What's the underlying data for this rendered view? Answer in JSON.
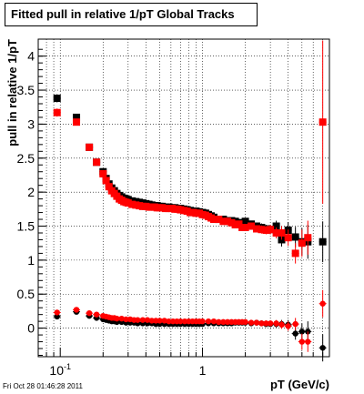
{
  "chart_data": {
    "type": "scatter",
    "title": "Fitted pull in relative 1/pT  Global Tracks",
    "xlabel": "pT (GeV/c)",
    "ylabel": "pull in relative 1/pT",
    "x_scale": "log",
    "xlim": [
      0.07,
      7.8
    ],
    "ylim": [
      -0.42,
      4.25
    ],
    "grid": true,
    "x_ticks": [
      {
        "value": 0.1,
        "label": "10",
        "sup": "-1"
      },
      {
        "value": 1,
        "label": "1",
        "sup": ""
      }
    ],
    "y_ticks": [
      0,
      0.5,
      1,
      1.5,
      2,
      2.5,
      3,
      3.5,
      4
    ],
    "y_tick_labels": [
      "0",
      "0.5",
      "1",
      "1.5",
      "2",
      "2.5",
      "3",
      "3.5",
      "4"
    ],
    "series": [
      {
        "color": "#000000",
        "marker": "square",
        "x": [
          0.095,
          0.13,
          0.16,
          0.18,
          0.2,
          0.21,
          0.22,
          0.23,
          0.24,
          0.25,
          0.26,
          0.27,
          0.28,
          0.29,
          0.3,
          0.32,
          0.34,
          0.36,
          0.38,
          0.4,
          0.42,
          0.44,
          0.46,
          0.48,
          0.5,
          0.52,
          0.55,
          0.58,
          0.61,
          0.64,
          0.67,
          0.7,
          0.74,
          0.78,
          0.82,
          0.86,
          0.9,
          0.95,
          1.0,
          1.05,
          1.1,
          1.15,
          1.2,
          1.3,
          1.4,
          1.5,
          1.6,
          1.7,
          1.8,
          1.9,
          2.0,
          2.2,
          2.4,
          2.6,
          2.8,
          3.0,
          3.3,
          3.6,
          4.0,
          4.5,
          5.0,
          5.5,
          7.0
        ],
        "y": [
          3.38,
          3.1,
          2.66,
          2.44,
          2.3,
          2.2,
          2.12,
          2.06,
          2.02,
          1.98,
          1.95,
          1.93,
          1.91,
          1.9,
          1.89,
          1.87,
          1.86,
          1.85,
          1.84,
          1.83,
          1.82,
          1.81,
          1.8,
          1.8,
          1.79,
          1.79,
          1.78,
          1.78,
          1.77,
          1.77,
          1.76,
          1.76,
          1.75,
          1.74,
          1.73,
          1.72,
          1.72,
          1.71,
          1.7,
          1.69,
          1.67,
          1.65,
          1.63,
          1.6,
          1.6,
          1.58,
          1.58,
          1.57,
          1.55,
          1.55,
          1.57,
          1.53,
          1.5,
          1.48,
          1.46,
          1.45,
          1.5,
          1.3,
          1.44,
          1.34,
          1.27,
          1.27,
          1.27
        ],
        "y_err": [
          0.06,
          0.05,
          0.04,
          0.03,
          0.02,
          0.02,
          0.02,
          0.02,
          0.02,
          0.02,
          0.02,
          0.02,
          0.02,
          0.02,
          0.02,
          0.02,
          0.02,
          0.02,
          0.02,
          0.02,
          0.02,
          0.02,
          0.02,
          0.02,
          0.02,
          0.02,
          0.02,
          0.02,
          0.02,
          0.02,
          0.02,
          0.02,
          0.02,
          0.02,
          0.02,
          0.02,
          0.02,
          0.02,
          0.02,
          0.02,
          0.02,
          0.02,
          0.02,
          0.03,
          0.03,
          0.03,
          0.03,
          0.03,
          0.03,
          0.04,
          0.04,
          0.05,
          0.05,
          0.06,
          0.06,
          0.07,
          0.08,
          0.1,
          0.12,
          0.15,
          0.2,
          0.25,
          0.3
        ]
      },
      {
        "color": "#ff0000",
        "marker": "square",
        "x": [
          0.095,
          0.13,
          0.16,
          0.18,
          0.2,
          0.21,
          0.22,
          0.23,
          0.24,
          0.25,
          0.26,
          0.27,
          0.28,
          0.29,
          0.3,
          0.32,
          0.34,
          0.36,
          0.38,
          0.4,
          0.42,
          0.44,
          0.46,
          0.48,
          0.5,
          0.52,
          0.55,
          0.58,
          0.61,
          0.64,
          0.67,
          0.7,
          0.74,
          0.78,
          0.82,
          0.86,
          0.9,
          0.95,
          1.0,
          1.05,
          1.1,
          1.15,
          1.2,
          1.3,
          1.4,
          1.5,
          1.6,
          1.7,
          1.8,
          1.9,
          2.0,
          2.2,
          2.4,
          2.6,
          2.8,
          3.0,
          3.3,
          3.6,
          4.0,
          4.5,
          5.0,
          5.5,
          7.0
        ],
        "y": [
          3.17,
          3.03,
          2.66,
          2.44,
          2.27,
          2.17,
          2.08,
          2.02,
          1.98,
          1.94,
          1.9,
          1.88,
          1.86,
          1.85,
          1.84,
          1.82,
          1.81,
          1.8,
          1.79,
          1.79,
          1.78,
          1.78,
          1.78,
          1.77,
          1.77,
          1.77,
          1.76,
          1.76,
          1.76,
          1.75,
          1.75,
          1.74,
          1.73,
          1.72,
          1.7,
          1.7,
          1.69,
          1.69,
          1.67,
          1.66,
          1.64,
          1.62,
          1.6,
          1.6,
          1.57,
          1.57,
          1.55,
          1.52,
          1.53,
          1.48,
          1.48,
          1.5,
          1.46,
          1.45,
          1.44,
          1.45,
          1.4,
          1.4,
          1.33,
          1.1,
          1.25,
          1.33,
          3.03
        ],
        "y_err": [
          0.06,
          0.05,
          0.04,
          0.03,
          0.02,
          0.02,
          0.02,
          0.02,
          0.02,
          0.02,
          0.02,
          0.02,
          0.02,
          0.02,
          0.02,
          0.02,
          0.02,
          0.02,
          0.02,
          0.02,
          0.02,
          0.02,
          0.02,
          0.02,
          0.02,
          0.02,
          0.02,
          0.02,
          0.02,
          0.02,
          0.02,
          0.02,
          0.02,
          0.02,
          0.02,
          0.02,
          0.02,
          0.02,
          0.02,
          0.02,
          0.02,
          0.02,
          0.02,
          0.03,
          0.03,
          0.03,
          0.03,
          0.03,
          0.03,
          0.04,
          0.04,
          0.05,
          0.05,
          0.06,
          0.06,
          0.07,
          0.08,
          0.1,
          0.12,
          0.15,
          0.2,
          0.25,
          1.2
        ]
      },
      {
        "color": "#000000",
        "marker": "circle",
        "x": [
          0.095,
          0.13,
          0.16,
          0.18,
          0.2,
          0.21,
          0.22,
          0.23,
          0.24,
          0.25,
          0.27,
          0.29,
          0.31,
          0.33,
          0.35,
          0.38,
          0.41,
          0.44,
          0.47,
          0.5,
          0.54,
          0.58,
          0.62,
          0.66,
          0.7,
          0.75,
          0.8,
          0.85,
          0.9,
          0.95,
          1.0,
          1.1,
          1.2,
          1.3,
          1.4,
          1.5,
          1.6,
          1.7,
          1.8,
          1.9,
          2.0,
          2.2,
          2.4,
          2.6,
          2.8,
          3.0,
          3.3,
          3.6,
          4.0,
          4.5,
          5.0,
          5.5,
          7.0
        ],
        "y": [
          0.17,
          0.24,
          0.18,
          0.15,
          0.13,
          0.12,
          0.11,
          0.1,
          0.1,
          0.09,
          0.09,
          0.08,
          0.08,
          0.08,
          0.07,
          0.07,
          0.07,
          0.07,
          0.06,
          0.06,
          0.06,
          0.06,
          0.06,
          0.06,
          0.06,
          0.06,
          0.06,
          0.06,
          0.06,
          0.06,
          0.06,
          0.07,
          0.07,
          0.07,
          0.07,
          0.07,
          0.07,
          0.08,
          0.08,
          0.08,
          0.08,
          0.07,
          0.08,
          0.07,
          0.06,
          0.06,
          0.06,
          0.06,
          0.05,
          -0.08,
          -0.05,
          -0.05,
          -0.29
        ],
        "y_err": [
          0.04,
          0.03,
          0.03,
          0.02,
          0.02,
          0.02,
          0.02,
          0.02,
          0.02,
          0.02,
          0.02,
          0.02,
          0.02,
          0.02,
          0.02,
          0.02,
          0.02,
          0.02,
          0.02,
          0.02,
          0.02,
          0.02,
          0.02,
          0.02,
          0.02,
          0.02,
          0.02,
          0.02,
          0.02,
          0.02,
          0.02,
          0.02,
          0.02,
          0.02,
          0.02,
          0.02,
          0.02,
          0.02,
          0.02,
          0.03,
          0.03,
          0.03,
          0.03,
          0.04,
          0.04,
          0.04,
          0.05,
          0.06,
          0.07,
          0.09,
          0.12,
          0.15,
          0.2
        ]
      },
      {
        "color": "#ff0000",
        "marker": "circle",
        "x": [
          0.095,
          0.13,
          0.16,
          0.18,
          0.2,
          0.21,
          0.22,
          0.23,
          0.24,
          0.25,
          0.27,
          0.29,
          0.31,
          0.33,
          0.35,
          0.38,
          0.41,
          0.44,
          0.47,
          0.5,
          0.54,
          0.58,
          0.62,
          0.66,
          0.7,
          0.75,
          0.8,
          0.85,
          0.9,
          0.95,
          1.0,
          1.1,
          1.2,
          1.3,
          1.4,
          1.5,
          1.6,
          1.7,
          1.8,
          1.9,
          2.0,
          2.2,
          2.4,
          2.6,
          2.8,
          3.0,
          3.3,
          3.6,
          4.0,
          4.5,
          5.0,
          5.5,
          7.0
        ],
        "y": [
          0.23,
          0.27,
          0.22,
          0.2,
          0.18,
          0.17,
          0.16,
          0.15,
          0.15,
          0.14,
          0.14,
          0.13,
          0.13,
          0.12,
          0.12,
          0.12,
          0.12,
          0.11,
          0.11,
          0.11,
          0.11,
          0.1,
          0.1,
          0.1,
          0.1,
          0.1,
          0.1,
          0.1,
          0.1,
          0.1,
          0.1,
          0.1,
          0.1,
          0.09,
          0.09,
          0.09,
          0.09,
          0.09,
          0.09,
          0.09,
          0.09,
          0.08,
          0.08,
          0.07,
          0.07,
          0.07,
          0.07,
          0.05,
          0.03,
          0.06,
          -0.2,
          -0.2,
          0.36
        ],
        "y_err": [
          0.04,
          0.03,
          0.03,
          0.02,
          0.02,
          0.02,
          0.02,
          0.02,
          0.02,
          0.02,
          0.02,
          0.02,
          0.02,
          0.02,
          0.02,
          0.02,
          0.02,
          0.02,
          0.02,
          0.02,
          0.02,
          0.02,
          0.02,
          0.02,
          0.02,
          0.02,
          0.02,
          0.02,
          0.02,
          0.02,
          0.02,
          0.02,
          0.02,
          0.02,
          0.02,
          0.02,
          0.02,
          0.02,
          0.02,
          0.03,
          0.03,
          0.03,
          0.03,
          0.04,
          0.04,
          0.04,
          0.05,
          0.06,
          0.07,
          0.09,
          0.12,
          0.15,
          0.2
        ]
      }
    ]
  },
  "footer": {
    "timestamp": "Fri Oct 28 01:46:28 2011"
  }
}
